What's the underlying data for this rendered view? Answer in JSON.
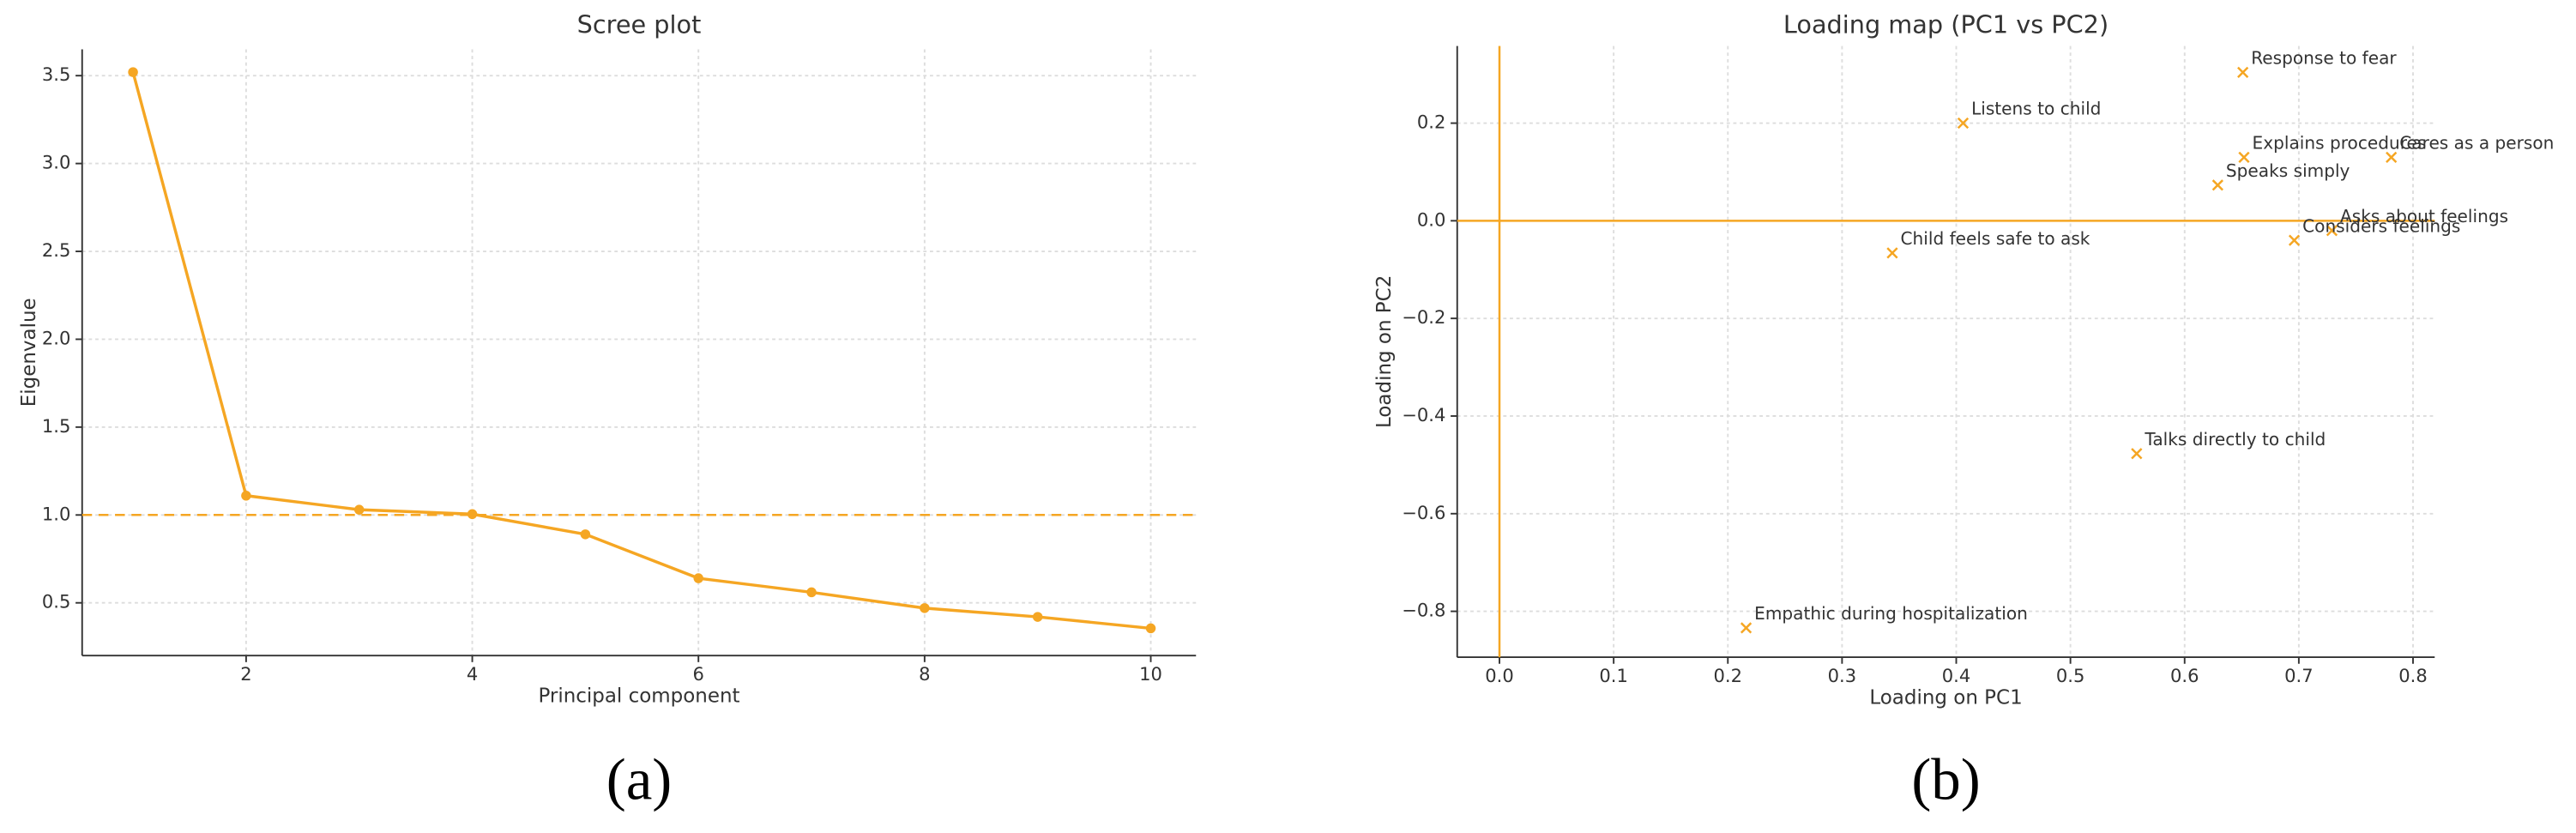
{
  "chart_data": [
    {
      "type": "line",
      "title": "Scree plot",
      "xlabel": "Principal component",
      "ylabel": "Eigenvalue",
      "caption": "(a)",
      "color": "#f5a623",
      "x": [
        1,
        2,
        3,
        4,
        5,
        6,
        7,
        8,
        9,
        10
      ],
      "values": [
        3.52,
        1.11,
        1.03,
        1.005,
        0.89,
        0.64,
        0.56,
        0.47,
        0.42,
        0.355
      ],
      "hline": 1,
      "hline_style": "dashed",
      "xlim": [
        0.55,
        10.4
      ],
      "xticks": [
        2,
        4,
        6,
        8,
        10
      ],
      "ylim": [
        0.2,
        3.65
      ],
      "yticks": [
        0.5,
        {
          "value": 1,
          "label": "1.0"
        },
        1.5,
        {
          "value": 2,
          "label": "2.0"
        },
        2.5,
        {
          "value": 3,
          "label": "3.0"
        },
        3.5
      ],
      "grid": true
    },
    {
      "type": "scatter",
      "title": "Loading map (PC1 vs PC2)",
      "xlabel": "Loading on PC1",
      "ylabel": "Loading on PC2",
      "caption": "(b)",
      "color": "#f5a623",
      "labels": [
        "Response to fear",
        "Listens to child",
        "Explains procedures",
        "Cares as a person",
        "Speaks simply",
        "Asks about feelings",
        "Considers feelings",
        "Child feels safe to ask",
        "Talks directly to child",
        "Empathic during hospitalization"
      ],
      "x": [
        0.651,
        0.406,
        0.652,
        0.781,
        0.629,
        0.729,
        0.696,
        0.344,
        0.558,
        0.216
      ],
      "values": [
        0.304,
        0.2,
        0.13,
        0.13,
        0.073,
        -0.02,
        -0.04,
        -0.066,
        -0.477,
        -0.834
      ],
      "hline": 0,
      "vline": 0,
      "xlim": [
        -0.037,
        0.819
      ],
      "xticks": [
        {
          "value": 0,
          "label": "0.0"
        },
        0.1,
        0.2,
        0.3,
        0.4,
        0.5,
        0.6,
        0.7,
        0.8
      ],
      "ylim": [
        -0.894,
        0.358
      ],
      "yticks": [
        {
          "value": -0.8,
          "label": "−0.8"
        },
        {
          "value": -0.6,
          "label": "−0.6"
        },
        {
          "value": -0.4,
          "label": "−0.4"
        },
        {
          "value": -0.2,
          "label": "−0.2"
        },
        {
          "value": 0,
          "label": "0.0"
        },
        0.2
      ],
      "grid": true
    }
  ]
}
